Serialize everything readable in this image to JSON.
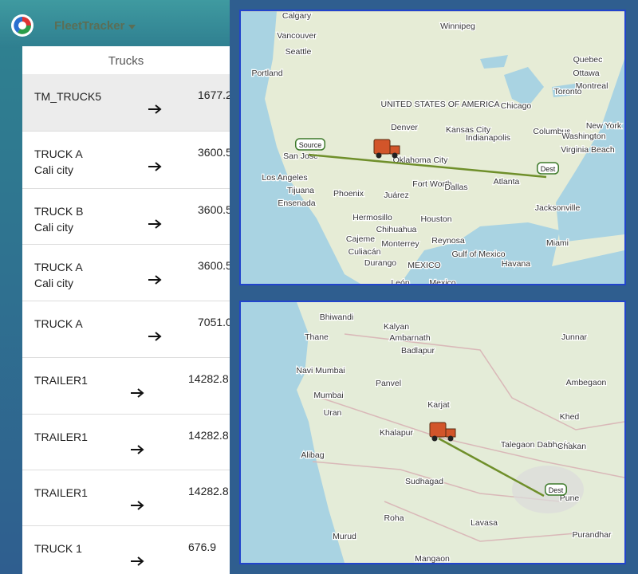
{
  "header": {
    "app_name": "FleetTracker"
  },
  "sidebar": {
    "title": "Trucks",
    "items": [
      {
        "name": "TM_TRUCK5",
        "amount": "1677.2"
      },
      {
        "name": "TRUCK A",
        "sub": "Cali city",
        "amount": "3600.5"
      },
      {
        "name": "TRUCK B",
        "sub": "Cali city",
        "amount": "3600.5"
      },
      {
        "name": "TRUCK A",
        "sub": "Cali city",
        "amount": "3600.5"
      },
      {
        "name": "TRUCK A",
        "amount": "7051.0"
      },
      {
        "name": "TRAILER1",
        "amount": "14282.8"
      },
      {
        "name": "TRAILER1",
        "amount": "14282.8"
      },
      {
        "name": "TRAILER1",
        "amount": "14282.8"
      },
      {
        "name": "TRUCK 1",
        "amount": "676.9"
      }
    ]
  },
  "maps": [
    {
      "source_label": "Source",
      "dest_label": "Dest",
      "labels": [
        "Calgary",
        "Winnipeg",
        "Vancouver",
        "Seattle",
        "Portland",
        "Quebec",
        "Ottawa",
        "Montreal",
        "Toronto",
        "Chicago",
        "UNITED STATES OF AMERICA",
        "Denver",
        "Kansas City",
        "Indianapolis",
        "Columbus",
        "New York",
        "Washington",
        "Virginia Beach",
        "Oklahoma City",
        "San Jose",
        "Los Angeles",
        "Tijuana",
        "Ensenada",
        "Phoenix",
        "Juárez",
        "Fort Worth",
        "Dallas",
        "Atlanta",
        "Jacksonville",
        "Hermosillo",
        "Chihuahua",
        "Houston",
        "Cajeme",
        "Monterrey",
        "Reynosa",
        "Culiacán",
        "Durango",
        "MEXICO",
        "Gulf of Mexico",
        "Miami",
        "Havana",
        "León",
        "Mexico"
      ]
    },
    {
      "dest_label": "Dest",
      "labels": [
        "Bhiwandi",
        "Kalyan",
        "Thane",
        "Ambarnath",
        "Badlapur",
        "Navi Mumbai",
        "Mumbai",
        "Panvel",
        "Uran",
        "Karjat",
        "Khalapur",
        "Talegaon Dabhade",
        "Chakan",
        "Junnar",
        "Ambegaon",
        "Khed",
        "Sudhagad",
        "Roha",
        "Lavasa",
        "Murud",
        "Mangaon",
        "Purandhar",
        "Alibag",
        "Pune"
      ]
    }
  ]
}
